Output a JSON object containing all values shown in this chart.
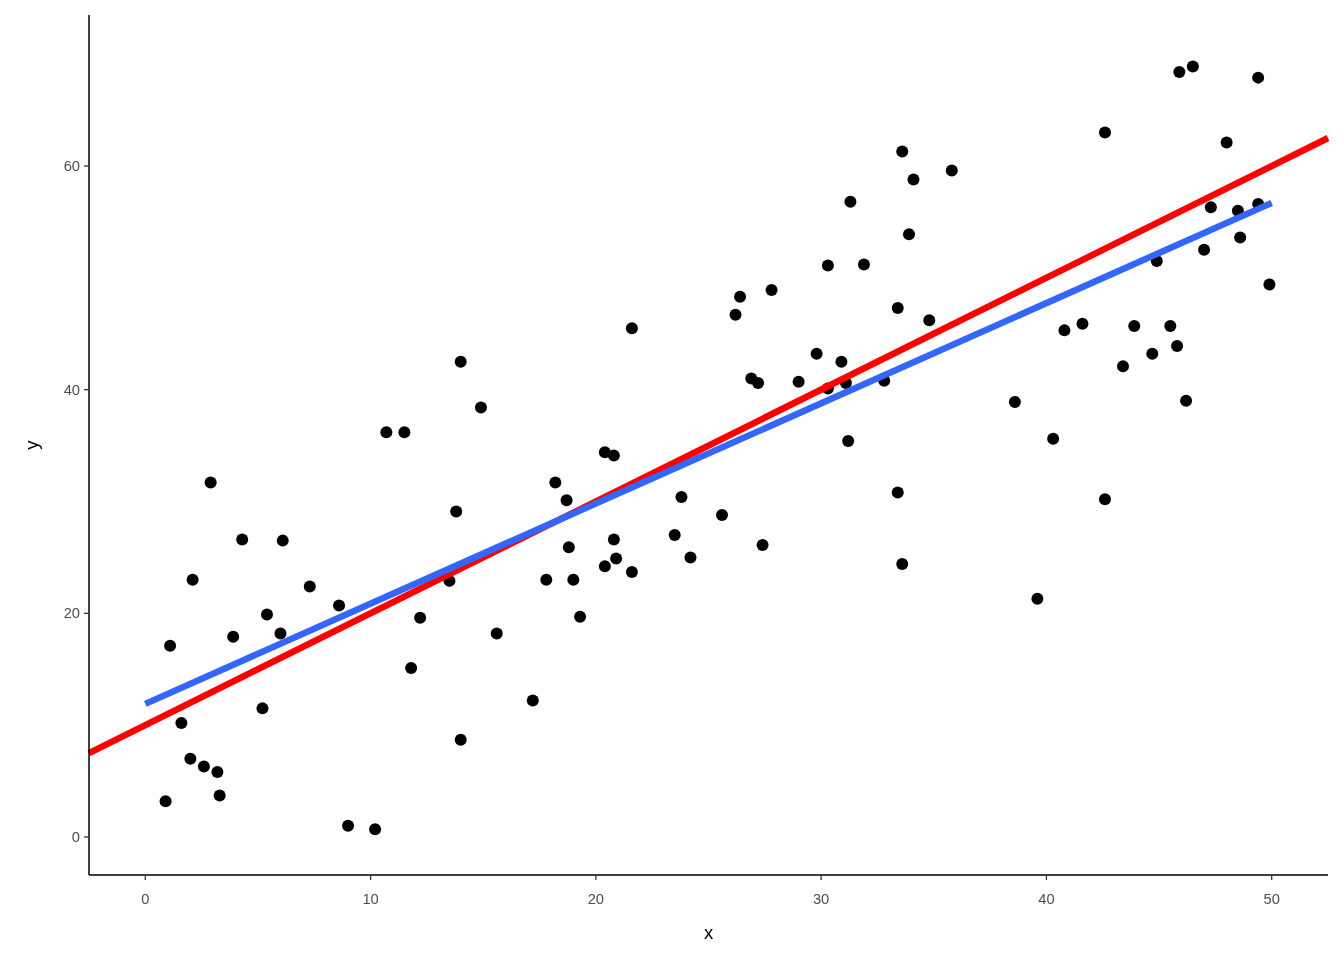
{
  "chart_data": {
    "type": "scatter",
    "xlabel": "x",
    "ylabel": "y",
    "xlim": [
      -2.5,
      52.5
    ],
    "ylim": [
      -3.4,
      73.5
    ],
    "xticks": [
      0,
      10,
      20,
      30,
      40,
      50
    ],
    "yticks": [
      0,
      20,
      40,
      60
    ],
    "series": [
      {
        "color": "#000000",
        "marker": "circle",
        "x": [
          0.9,
          1.1,
          1.6,
          2.0,
          2.1,
          2.6,
          2.9,
          3.2,
          3.3,
          3.9,
          4.3,
          5.2,
          5.4,
          6.0,
          6.1,
          7.3,
          8.6,
          9.0,
          10.2,
          10.7,
          11.5,
          11.8,
          12.2,
          13.5,
          13.8,
          14.0,
          14.0,
          14.9,
          15.6,
          17.2,
          17.8,
          18.2,
          18.7,
          18.8,
          19.0,
          19.3,
          20.4,
          20.4,
          20.8,
          20.8,
          20.9,
          21.6,
          21.6,
          23.5,
          23.8,
          24.2,
          25.6,
          26.2,
          26.4,
          26.9,
          27.2,
          27.4,
          27.8,
          29.0,
          29.8,
          30.3,
          30.3,
          30.9,
          31.1,
          31.2,
          31.3,
          31.9,
          32.8,
          33.4,
          33.4,
          33.6,
          33.6,
          33.9,
          34.1,
          34.8,
          35.8,
          38.6,
          39.6,
          40.3,
          40.8,
          41.6,
          42.6,
          42.6,
          43.4,
          43.9,
          44.7,
          44.9,
          45.5,
          45.8,
          45.9,
          46.2,
          46.5,
          47.0,
          47.3,
          48.0,
          48.5,
          48.6,
          49.4,
          49.4,
          49.9
        ],
        "values": [
          3.2,
          17.1,
          10.2,
          7.0,
          23.0,
          6.3,
          31.7,
          5.8,
          3.7,
          17.9,
          26.6,
          11.5,
          19.9,
          18.2,
          26.5,
          22.4,
          20.7,
          1.0,
          0.7,
          36.2,
          36.2,
          15.1,
          19.6,
          22.9,
          29.1,
          42.5,
          8.7,
          38.4,
          18.2,
          12.2,
          23.0,
          31.7,
          30.1,
          25.9,
          23.0,
          19.7,
          34.4,
          24.2,
          34.1,
          26.6,
          24.9,
          23.7,
          45.5,
          27.0,
          30.4,
          25.0,
          28.8,
          46.7,
          48.3,
          41.0,
          40.6,
          26.1,
          48.9,
          40.7,
          43.2,
          51.1,
          40.1,
          42.5,
          40.6,
          35.4,
          56.8,
          51.2,
          40.8,
          47.3,
          30.8,
          61.3,
          24.4,
          53.9,
          58.8,
          46.2,
          59.6,
          38.9,
          21.3,
          35.6,
          45.3,
          45.9,
          63.0,
          30.2,
          42.1,
          45.7,
          43.2,
          51.5,
          45.7,
          43.9,
          68.4,
          39.0,
          68.9,
          52.5,
          56.3,
          62.1,
          56.0,
          53.6,
          67.9,
          56.6,
          49.4
        ]
      },
      {
        "type": "line",
        "color": "#ff0000",
        "x": [
          -2.5,
          52.5
        ],
        "values": [
          7.5,
          62.5
        ]
      },
      {
        "type": "line",
        "color": "#3366ff",
        "x": [
          0,
          50
        ],
        "values": [
          11.9,
          56.7
        ]
      }
    ]
  }
}
